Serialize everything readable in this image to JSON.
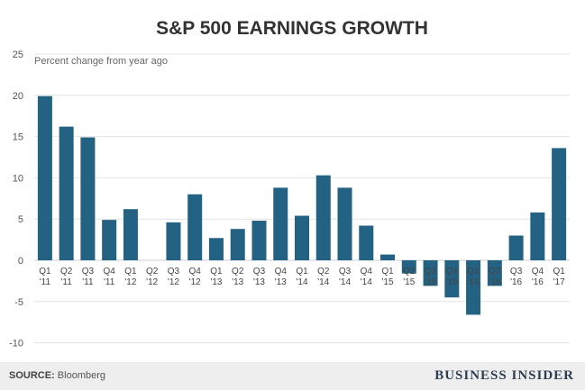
{
  "chart_data": {
    "type": "bar",
    "title": "S&P 500 EARNINGS GROWTH",
    "subtitle": "Percent change from year ago",
    "categories": [
      [
        "Q1",
        "'11"
      ],
      [
        "Q2",
        "'11"
      ],
      [
        "Q3",
        "'11"
      ],
      [
        "Q4",
        "'11"
      ],
      [
        "Q1",
        "'12"
      ],
      [
        "Q2",
        "'12"
      ],
      [
        "Q3",
        "'12"
      ],
      [
        "Q4",
        "'12"
      ],
      [
        "Q1",
        "'13"
      ],
      [
        "Q2",
        "'13"
      ],
      [
        "Q3",
        "'13"
      ],
      [
        "Q4",
        "'13"
      ],
      [
        "Q1",
        "'14"
      ],
      [
        "Q2",
        "'14"
      ],
      [
        "Q3",
        "'14"
      ],
      [
        "Q4",
        "'14"
      ],
      [
        "Q1",
        "'15"
      ],
      [
        "Q2",
        "'15"
      ],
      [
        "Q3",
        "'15"
      ],
      [
        "Q4",
        "'15"
      ],
      [
        "Q1",
        "'16"
      ],
      [
        "Q2",
        "'16"
      ],
      [
        "Q3",
        "'16"
      ],
      [
        "Q4",
        "'16"
      ],
      [
        "Q1",
        "'17"
      ]
    ],
    "values": [
      19.9,
      16.2,
      14.9,
      4.9,
      6.2,
      0,
      4.6,
      8.0,
      2.7,
      3.8,
      4.8,
      8.8,
      5.4,
      10.3,
      8.8,
      4.2,
      0.7,
      -1.6,
      -3.1,
      -4.5,
      -6.6,
      -3.1,
      3.0,
      5.8,
      13.6
    ],
    "yticks": [
      25,
      20,
      15,
      10,
      5,
      0,
      -5,
      -10
    ],
    "ylim": [
      -11,
      25
    ],
    "grid": true,
    "bar_color": "#236283"
  },
  "footer": {
    "source_label": "SOURCE:",
    "source_text": "Bloomberg",
    "brand": "BUSINESS INSIDER"
  }
}
